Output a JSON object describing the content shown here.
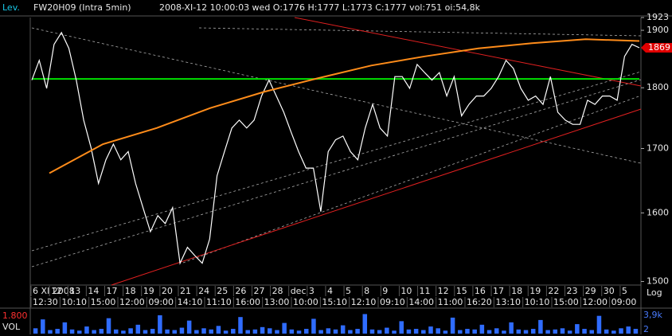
{
  "chart_data": {
    "type": "line",
    "left_label": "Lev.",
    "symbol": "FW20H09 (Intra 5min)",
    "info": "2008-XI-12  10:00:03 wed O:1776 H:1777 L:1773 C:1777 vol:751 oi:54,8k",
    "scale_label": "Log",
    "log": true,
    "ylim": [
      1495,
      1923
    ],
    "yticks": [
      1500,
      1600,
      1700,
      1800,
      1900,
      1923
    ],
    "last_price": 1869,
    "last_color": "#e00000",
    "hline": {
      "value": 1815,
      "color": "#00e000"
    },
    "x_top": [
      "6 XI 2008",
      "12",
      "13",
      "14",
      "17",
      "18",
      "19",
      "20",
      "21",
      "24",
      "25",
      "26",
      "27",
      "28",
      "dec",
      "3",
      "4",
      "5",
      "8",
      "9",
      "10",
      "11",
      "12",
      "15",
      "16",
      "17",
      "18",
      "19",
      "22",
      "23",
      "29",
      "30",
      "5"
    ],
    "x_bottom": [
      "12:30",
      "10:10",
      "15:00",
      "12:00",
      "09:00",
      "14:10",
      "11:10",
      "16:00",
      "13:00",
      "10:00",
      "15:10",
      "12:10",
      "09:10",
      "14:00",
      "11:00",
      "16:20",
      "13:10",
      "10:10",
      "15:00",
      "12:00",
      "09:00"
    ],
    "series": [
      {
        "color": "#ffffff",
        "values": [
          1813,
          1847,
          1799,
          1875,
          1896,
          1868,
          1813,
          1746,
          1701,
          1645,
          1682,
          1707,
          1682,
          1695,
          1645,
          1608,
          1572,
          1596,
          1584,
          1608,
          1526,
          1549,
          1537,
          1526,
          1561,
          1657,
          1695,
          1733,
          1746,
          1733,
          1746,
          1786,
          1813,
          1786,
          1759,
          1726,
          1695,
          1669,
          1669,
          1602,
          1695,
          1714,
          1720,
          1695,
          1682,
          1733,
          1772,
          1733,
          1720,
          1819,
          1819,
          1799,
          1840,
          1826,
          1813,
          1826,
          1786,
          1819,
          1753,
          1772,
          1786,
          1786,
          1799,
          1819,
          1847,
          1833,
          1799,
          1779,
          1786,
          1772,
          1819,
          1759,
          1746,
          1739,
          1739,
          1779,
          1772,
          1786,
          1786,
          1779,
          1854,
          1875,
          1869
        ]
      },
      {
        "color": "#ff8c1a",
        "values": [
          1661,
          1707,
          1733,
          1766,
          1793,
          1816,
          1838,
          1854,
          1868,
          1877,
          1884,
          1881
        ]
      }
    ],
    "volume": {
      "label": "VOL",
      "level_label": "1.800",
      "color": "#2f6cff",
      "ylim": [
        0,
        3900
      ],
      "yticks": [
        {
          "value": 3900,
          "label": "3,9k"
        },
        2
      ],
      "values": [
        900,
        2400,
        600,
        800,
        1900,
        700,
        500,
        1200,
        600,
        800,
        2600,
        700,
        500,
        900,
        1500,
        600,
        800,
        3100,
        700,
        600,
        1000,
        2200,
        600,
        900,
        700,
        1300,
        500,
        800,
        2800,
        600,
        700,
        1100,
        900,
        600,
        1800,
        700,
        500,
        800,
        2500,
        600,
        900,
        700,
        1400,
        600,
        800,
        3300,
        700,
        600,
        1000,
        500,
        2100,
        700,
        800,
        600,
        1200,
        900,
        500,
        2700,
        600,
        800,
        700,
        1500,
        600,
        900,
        500,
        1900,
        700,
        600,
        800,
        2300,
        600,
        700,
        900,
        500,
        1600,
        800,
        600,
        3000,
        700,
        500,
        900,
        1200,
        800
      ]
    }
  }
}
